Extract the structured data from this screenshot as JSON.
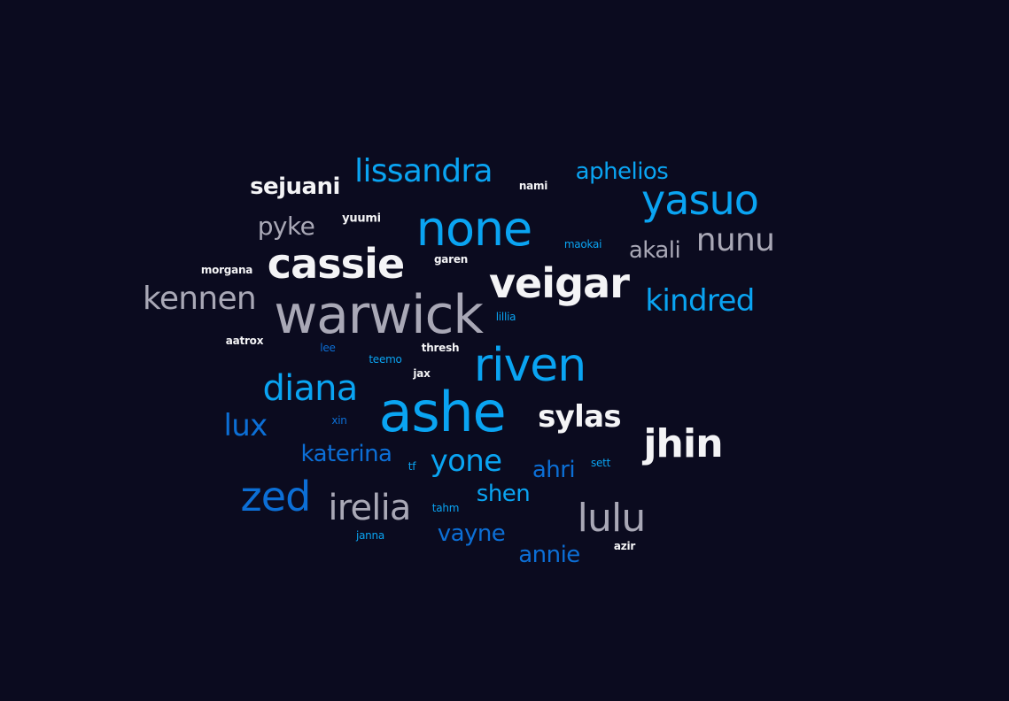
{
  "palette": {
    "background": "#0b0b1f",
    "white": "#f4f4f6",
    "gray": "#a9a8b6",
    "cyan": "#0aa4f2",
    "blue": "#0c6fd6"
  },
  "words": [
    {
      "text": "lissandra",
      "tone": "cyan"
    },
    {
      "text": "aphelios",
      "tone": "cyan"
    },
    {
      "text": "sejuani",
      "tone": "white"
    },
    {
      "text": "nami",
      "tone": "white"
    },
    {
      "text": "yasuo",
      "tone": "cyan"
    },
    {
      "text": "pyke",
      "tone": "gray"
    },
    {
      "text": "yuumi",
      "tone": "white"
    },
    {
      "text": "none",
      "tone": "cyan"
    },
    {
      "text": "maokai",
      "tone": "cyan"
    },
    {
      "text": "nunu",
      "tone": "gray"
    },
    {
      "text": "akali",
      "tone": "gray"
    },
    {
      "text": "cassie",
      "tone": "white"
    },
    {
      "text": "morgana",
      "tone": "white"
    },
    {
      "text": "garen",
      "tone": "white"
    },
    {
      "text": "veigar",
      "tone": "white"
    },
    {
      "text": "kennen",
      "tone": "gray"
    },
    {
      "text": "kindred",
      "tone": "cyan"
    },
    {
      "text": "warwick",
      "tone": "gray"
    },
    {
      "text": "lillia",
      "tone": "cyan"
    },
    {
      "text": "aatrox",
      "tone": "white"
    },
    {
      "text": "lee",
      "tone": "blue"
    },
    {
      "text": "thresh",
      "tone": "white"
    },
    {
      "text": "teemo",
      "tone": "cyan"
    },
    {
      "text": "riven",
      "tone": "cyan"
    },
    {
      "text": "jax",
      "tone": "white"
    },
    {
      "text": "diana",
      "tone": "cyan"
    },
    {
      "text": "ashe",
      "tone": "cyan"
    },
    {
      "text": "sylas",
      "tone": "white"
    },
    {
      "text": "lux",
      "tone": "blue"
    },
    {
      "text": "xin",
      "tone": "blue"
    },
    {
      "text": "jhin",
      "tone": "white"
    },
    {
      "text": "katerina",
      "tone": "blue"
    },
    {
      "text": "tf",
      "tone": "cyan"
    },
    {
      "text": "yone",
      "tone": "cyan"
    },
    {
      "text": "ahri",
      "tone": "blue"
    },
    {
      "text": "sett",
      "tone": "cyan"
    },
    {
      "text": "zed",
      "tone": "blue"
    },
    {
      "text": "shen",
      "tone": "cyan"
    },
    {
      "text": "irelia",
      "tone": "gray"
    },
    {
      "text": "tahm",
      "tone": "cyan"
    },
    {
      "text": "lulu",
      "tone": "gray"
    },
    {
      "text": "vayne",
      "tone": "blue"
    },
    {
      "text": "janna",
      "tone": "cyan"
    },
    {
      "text": "annie",
      "tone": "blue"
    },
    {
      "text": "azir",
      "tone": "white"
    }
  ]
}
